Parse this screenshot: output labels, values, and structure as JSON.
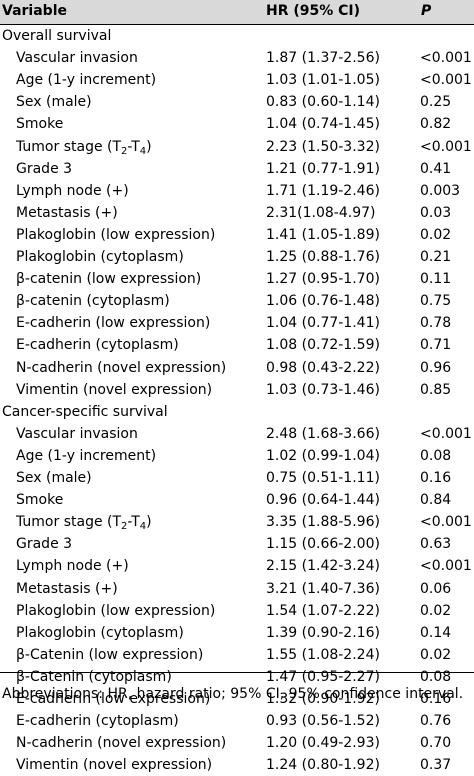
{
  "header": {
    "variable": "Variable",
    "hr": "HR (95% CI)",
    "p": "P"
  },
  "sections": [
    {
      "title": "Overall survival",
      "rows": [
        {
          "variable": "Vascular invasion",
          "hr": "1.87 (1.37-2.56)",
          "p": "<0.001"
        },
        {
          "variable": "Age (1-y increment)",
          "hr": "1.03 (1.01-1.05)",
          "p": "<0.001"
        },
        {
          "variable": "Sex (male)",
          "hr": "0.83 (0.60-1.14)",
          "p": "0.25"
        },
        {
          "variable": "Smoke",
          "hr": "1.04 (0.74-1.45)",
          "p": "0.82"
        },
        {
          "variable": "Tumor stage (T",
          "sub1": "2",
          "mid": "-T",
          "sub2": "4",
          "end": ")",
          "hr": "2.23 (1.50-3.32)",
          "p": "<0.001"
        },
        {
          "variable": "Grade 3",
          "hr": "1.21 (0.77-1.91)",
          "p": "0.41"
        },
        {
          "variable": "Lymph node (+)",
          "hr": "1.71 (1.19-2.46)",
          "p": "0.003"
        },
        {
          "variable": "Metastasis (+)",
          "hr": "2.31(1.08-4.97)",
          "p": "0.03"
        },
        {
          "variable": "Plakoglobin (low expression)",
          "hr": "1.41 (1.05-1.89)",
          "p": "0.02"
        },
        {
          "variable": "Plakoglobin (cytoplasm)",
          "hr": "1.25 (0.88-1.76)",
          "p": "0.21"
        },
        {
          "variable": "β-catenin (low expression)",
          "hr": "1.27 (0.95-1.70)",
          "p": "0.11"
        },
        {
          "variable": "β-catenin (cytoplasm)",
          "hr": "1.06 (0.76-1.48)",
          "p": "0.75"
        },
        {
          "variable": "E-cadherin (low expression)",
          "hr": "1.04 (0.77-1.41)",
          "p": "0.78"
        },
        {
          "variable": "E-cadherin (cytoplasm)",
          "hr": "1.08 (0.72-1.59)",
          "p": "0.71"
        },
        {
          "variable": "N-cadherin (novel expression)",
          "hr": "0.98 (0.43-2.22)",
          "p": "0.96"
        },
        {
          "variable": "Vimentin (novel expression)",
          "hr": "1.03 (0.73-1.46)",
          "p": "0.85"
        }
      ]
    },
    {
      "title": "Cancer-specific survival",
      "rows": [
        {
          "variable": "Vascular invasion",
          "hr": "2.48 (1.68-3.66)",
          "p": "<0.001"
        },
        {
          "variable": "Age (1-y increment)",
          "hr": "1.02 (0.99-1.04)",
          "p": "0.08"
        },
        {
          "variable": "Sex (male)",
          "hr": "0.75 (0.51-1.11)",
          "p": "0.16"
        },
        {
          "variable": "Smoke",
          "hr": "0.96 (0.64-1.44)",
          "p": "0.84"
        },
        {
          "variable": "Tumor stage (T",
          "sub1": "2",
          "mid": "-T",
          "sub2": "4",
          "end": ")",
          "hr": "3.35 (1.88-5.96)",
          "p": "<0.001"
        },
        {
          "variable": "Grade 3",
          "hr": "1.15 (0.66-2.00)",
          "p": "0.63"
        },
        {
          "variable": "Lymph node (+)",
          "hr": "2.15 (1.42-3.24)",
          "p": "<0.001"
        },
        {
          "variable": "Metastasis (+)",
          "hr": "3.21 (1.40-7.36)",
          "p": "0.06"
        },
        {
          "variable": "Plakoglobin (low expression)",
          "hr": "1.54 (1.07-2.22)",
          "p": "0.02"
        },
        {
          "variable": "Plakoglobin (cytoplasm)",
          "hr": "1.39 (0.90-2.16)",
          "p": "0.14"
        },
        {
          "variable": "β-Catenin (low expression)",
          "hr": "1.55 (1.08-2.24)",
          "p": "0.02"
        },
        {
          "variable": "β-Catenin (cytoplasm)",
          "hr": "1.47 (0.95-2.27)",
          "p": "0.08"
        },
        {
          "variable": "E-cadherin (low expression)",
          "hr": "1.32 (0.90-1.92)",
          "p": "0.16"
        },
        {
          "variable": "E-cadherin (cytoplasm)",
          "hr": "0.93 (0.56-1.52)",
          "p": "0.76"
        },
        {
          "variable": "N-cadherin (novel expression)",
          "hr": "1.20 (0.49-2.93)",
          "p": "0.70"
        },
        {
          "variable": "Vimentin (novel expression)",
          "hr": "1.24 (0.80-1.92)",
          "p": "0.37"
        }
      ]
    }
  ],
  "footnote": "Abbreviations: HR, hazard ratio; 95% CI, 95% confidence interval."
}
